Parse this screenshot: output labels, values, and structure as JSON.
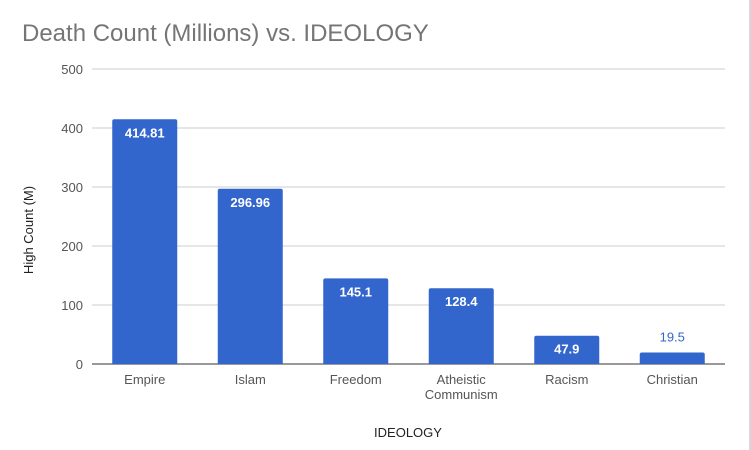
{
  "chart_data": {
    "type": "bar",
    "title": "Death Count (Millions) vs. IDEOLOGY",
    "xlabel": "IDEOLOGY",
    "ylabel": "High Count (M)",
    "categories": [
      "Empire",
      "Islam",
      "Freedom",
      "Atheistic Communism",
      "Racism",
      "Christian"
    ],
    "category_lines": [
      [
        "Empire"
      ],
      [
        "Islam"
      ],
      [
        "Freedom"
      ],
      [
        "Atheistic",
        "Communism"
      ],
      [
        "Racism"
      ],
      [
        "Christian"
      ]
    ],
    "values": [
      414.81,
      296.96,
      145.1,
      128.4,
      47.9,
      19.5
    ],
    "data_labels": [
      "414.81",
      "296.96",
      "145.1",
      "128.4",
      "47.9",
      "19.5"
    ],
    "ylim": [
      0,
      500
    ],
    "yticks": [
      0,
      100,
      200,
      300,
      400,
      500
    ],
    "grid": true,
    "legend": "none",
    "colors": {
      "bar": "#3366cc",
      "grid": "#cccccc",
      "title": "#757575"
    }
  }
}
